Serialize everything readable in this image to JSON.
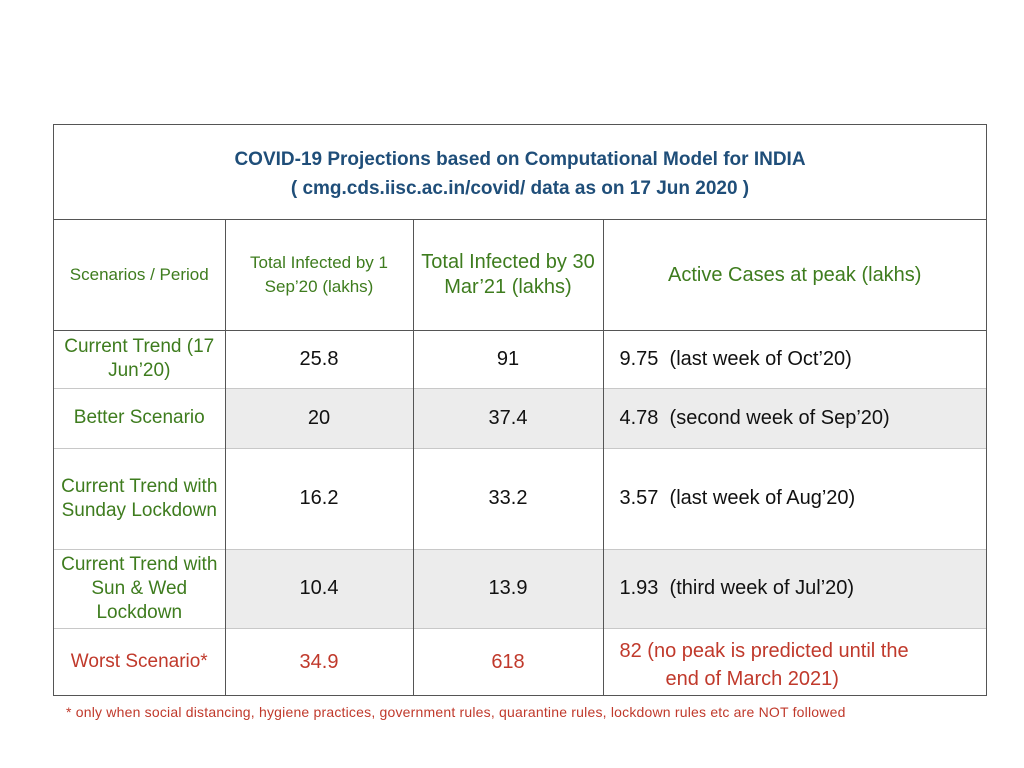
{
  "title": {
    "line1": "COVID-19 Projections based on Computational Model for INDIA",
    "line2": "( cmg.cds.iisc.ac.in/covid/ data as on 17 Jun 2020 )"
  },
  "columns": [
    "Scenarios / Period",
    "Total Infected by 1 Sep’20 (lakhs)",
    "Total Infected by 30 Mar’21 (lakhs)",
    "Active Cases at peak (lakhs)"
  ],
  "rows": [
    {
      "scenario": "Current Trend (17 Jun’20)",
      "sep20": "25.8",
      "mar21": "91",
      "active": "9.75  (last week of Oct’20)"
    },
    {
      "scenario": "Better Scenario",
      "sep20": "20",
      "mar21": "37.4",
      "active": "4.78  (second week of Sep’20)"
    },
    {
      "scenario": "Current Trend with Sunday Lockdown",
      "sep20": "16.2",
      "mar21": "33.2",
      "active": "3.57  (last week of Aug’20)"
    },
    {
      "scenario": "Current Trend with Sun & Wed Lockdown",
      "sep20": "10.4",
      "mar21": "13.9",
      "active": "1.93  (third week of Jul’20)"
    },
    {
      "scenario": "Worst Scenario*",
      "sep20": "34.9",
      "mar21": "618",
      "active_line1": "82  (no peak is predicted until the",
      "active_line2": "end of March 2021)"
    }
  ],
  "footnote": "* only when social distancing, hygiene practices, government rules, quarantine rules, lockdown rules etc are NOT followed",
  "colors": {
    "title": "#1f4e79",
    "scenario_text": "#3e7c1e",
    "worst_text": "#c0392b",
    "shade": "#ececec",
    "border": "#555555"
  }
}
